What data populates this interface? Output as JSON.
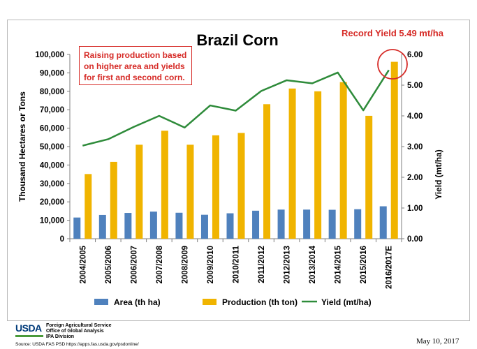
{
  "chart_data": {
    "type": "bar",
    "title": "Brazil Corn",
    "callout": "Record Yield 5.49 mt/ha",
    "note_lines": [
      "Raising production based",
      "on higher area and yields",
      "for first and second corn."
    ],
    "categories": [
      "2004/2005",
      "2005/2006",
      "2006/2007",
      "2007/2008",
      "2008/2009",
      "2009/2010",
      "2010/2011",
      "2011/2012",
      "2012/2013",
      "2013/2014",
      "2014/2015",
      "2015/2016",
      "2016/2017E"
    ],
    "series": [
      {
        "name": "Area (th ha)",
        "color": "#4f81bd",
        "axis": "left",
        "kind": "bar",
        "values": [
          11500,
          12900,
          14000,
          14700,
          14100,
          13000,
          13800,
          15200,
          15800,
          15800,
          15700,
          16000,
          17600
        ]
      },
      {
        "name": "Production (th ton)",
        "color": "#f0b400",
        "axis": "left",
        "kind": "bar",
        "values": [
          35100,
          41700,
          51000,
          58600,
          51000,
          56100,
          57400,
          73000,
          81500,
          80000,
          85000,
          66700,
          96000
        ]
      },
      {
        "name": "Yield (mt/ha)",
        "color": "#2e8b3a",
        "axis": "right",
        "kind": "line",
        "values": [
          3.03,
          3.24,
          3.64,
          4.0,
          3.62,
          4.34,
          4.17,
          4.81,
          5.16,
          5.06,
          5.41,
          4.18,
          5.49
        ]
      }
    ],
    "ylabel": "Thousand Hectares or Tons",
    "ylabel_right": "Yield (mt/ha)",
    "ylim": [
      0,
      100000
    ],
    "ylim_right": [
      0,
      6
    ],
    "yticks": [
      "0",
      "10,000",
      "20,000",
      "30,000",
      "40,000",
      "50,000",
      "60,000",
      "70,000",
      "80,000",
      "90,000",
      "100,000"
    ],
    "yticks_right": [
      "0.00",
      "1.00",
      "2.00",
      "3.00",
      "4.00",
      "5.00",
      "6.00"
    ],
    "grid": false,
    "legend_position": "bottom"
  },
  "footer": {
    "logo_text": "USDA",
    "agency_lines": [
      "Foreign Agricultural Service",
      "Office of Global Analysis",
      "IPA Division"
    ],
    "source": "Source: USDA FAS PSD https://apps.fas.usda.gov/psdonline/",
    "date": "May 10, 2017"
  },
  "colors": {
    "accent_red": "#d62b27",
    "area": "#4f81bd",
    "production": "#f0b400",
    "yield": "#2e8b3a"
  }
}
